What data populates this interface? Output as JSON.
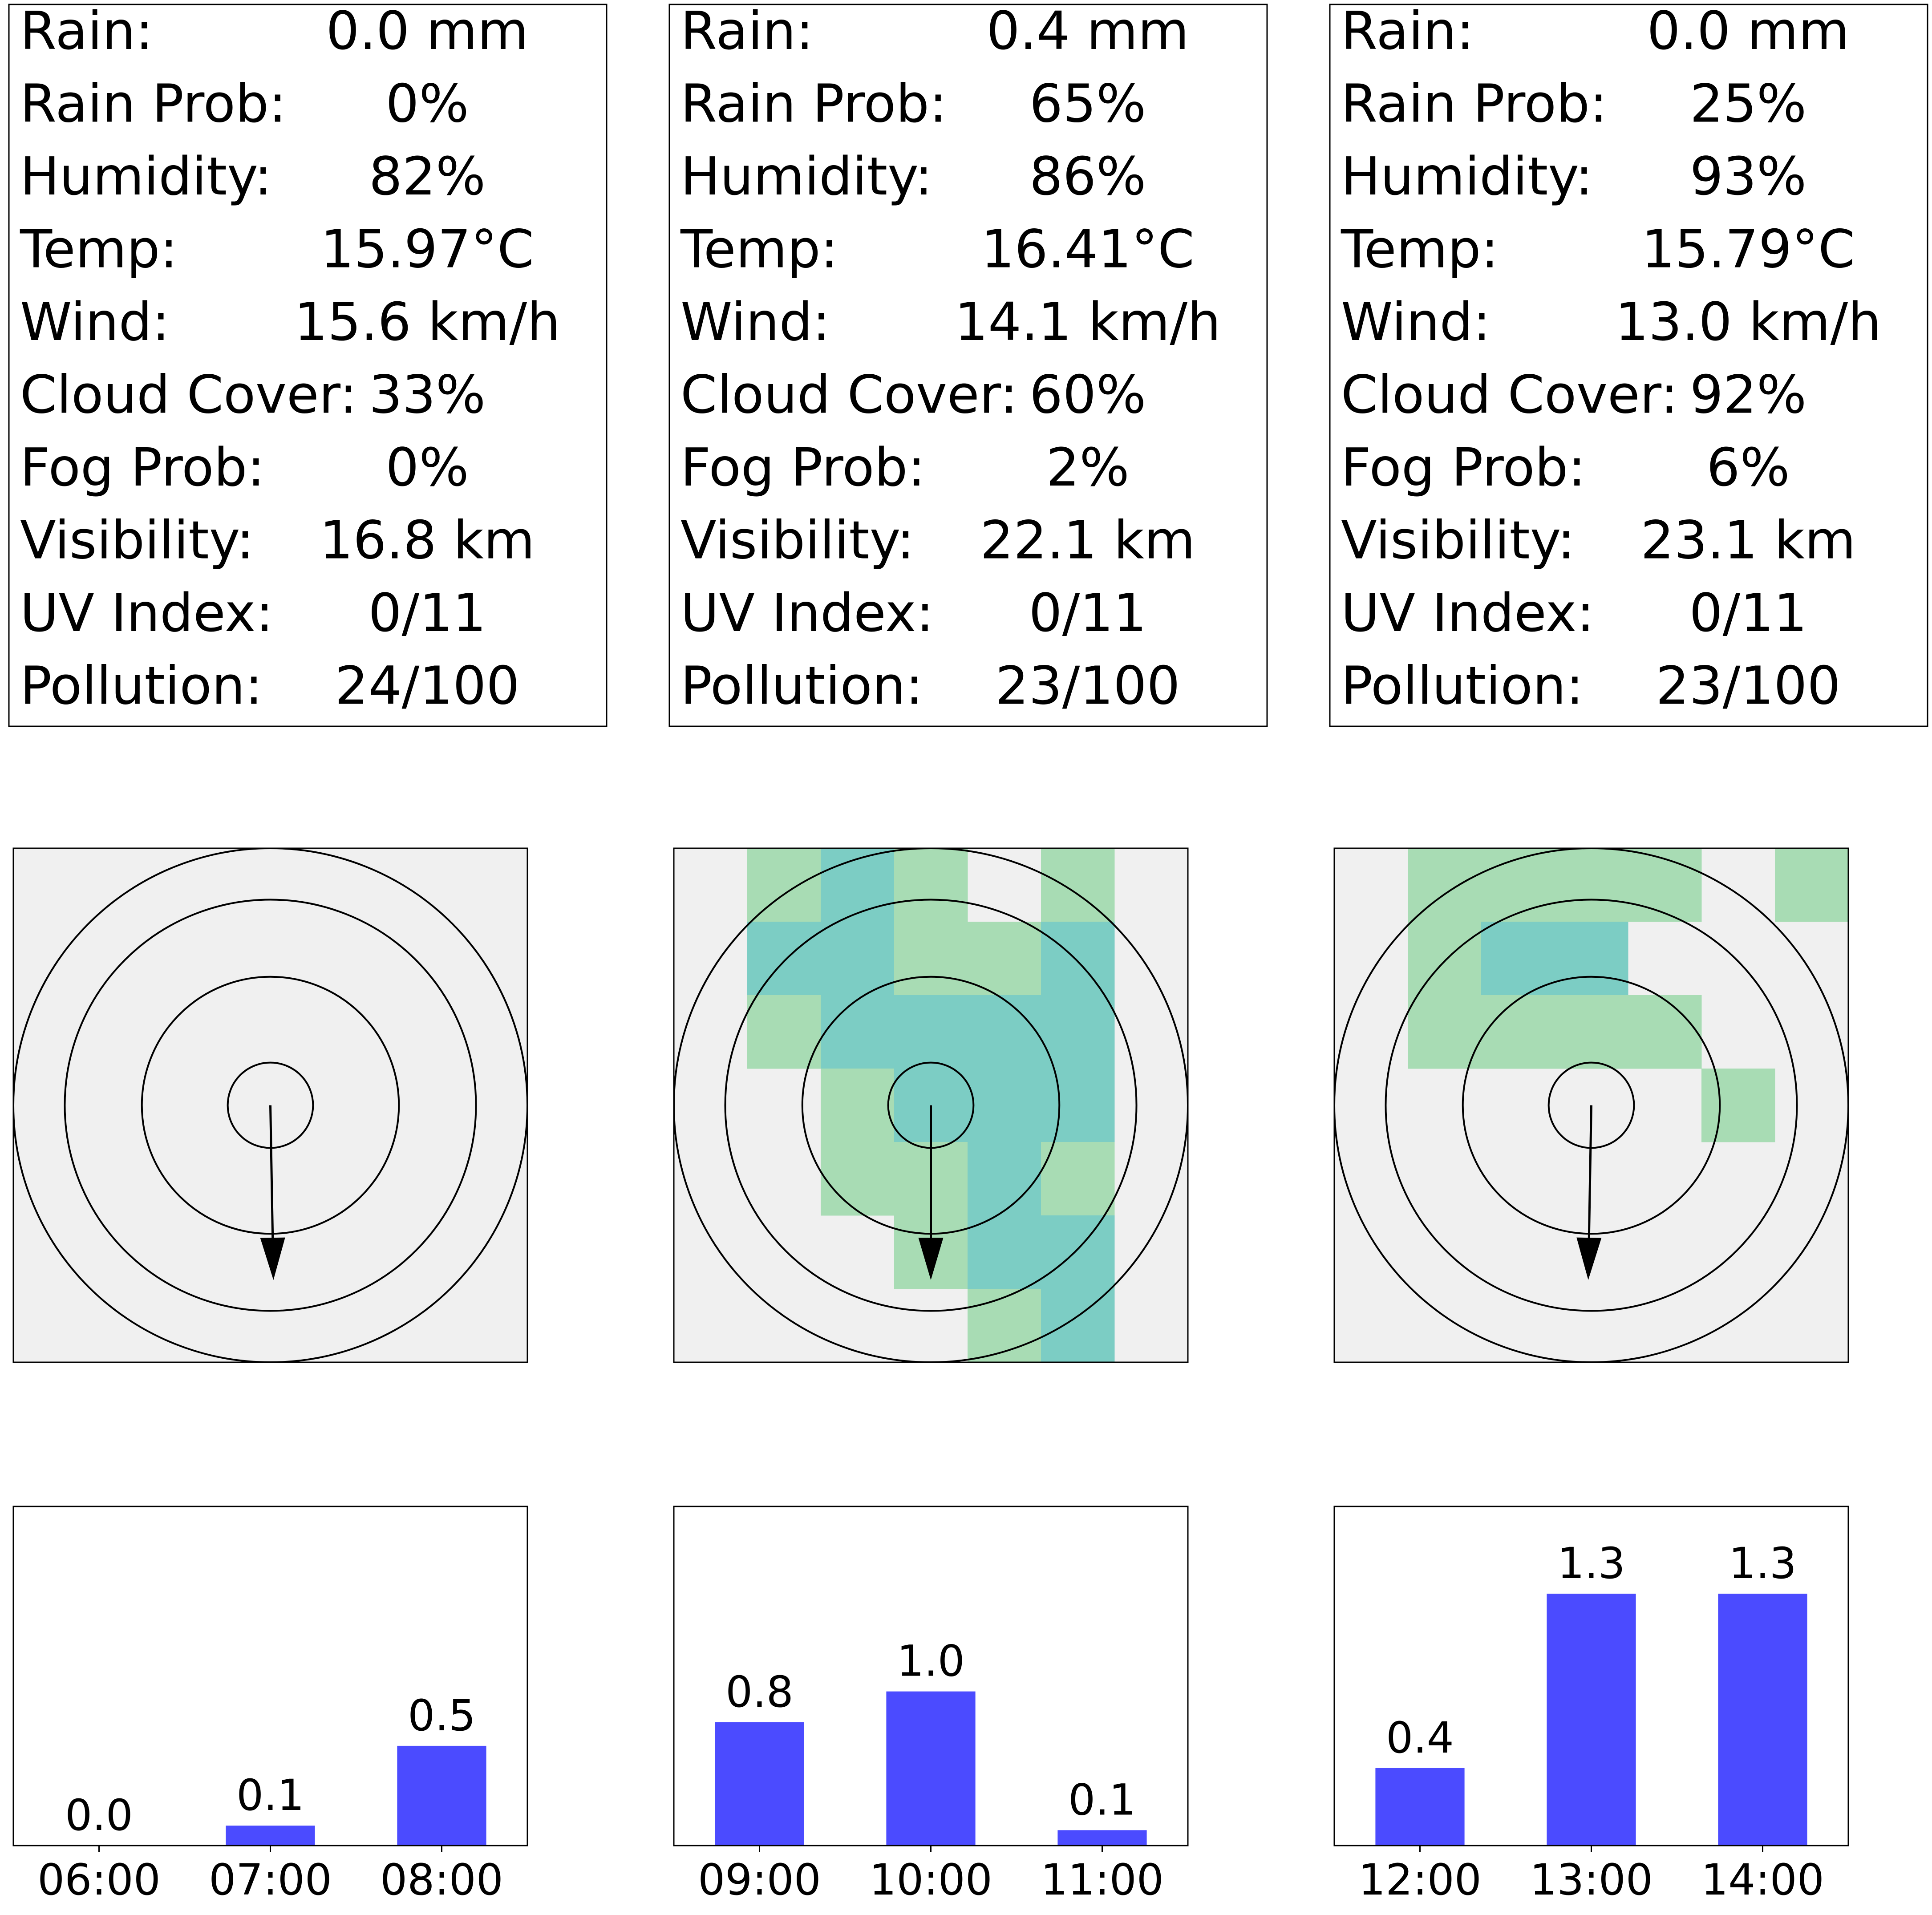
{
  "colors": {
    "map_background": "#f0f0f0",
    "light_rain": "#a8dcb4",
    "medium_rain": "#7ccdc4",
    "bar": "#4b4bff",
    "ink": "#000000"
  },
  "panels": [
    {
      "stats": [
        {
          "label": "Rain:",
          "value": "0.0 mm"
        },
        {
          "label": "Rain Prob:",
          "value": "0%"
        },
        {
          "label": "Humidity:",
          "value": "82%"
        },
        {
          "label": "Temp:",
          "value": "15.97°C"
        },
        {
          "label": "Wind:",
          "value": "15.6 km/h"
        },
        {
          "label": "Cloud Cover:",
          "value": "33%"
        },
        {
          "label": "Fog Prob:",
          "value": "0%"
        },
        {
          "label": "Visibility:",
          "value": "16.8 km"
        },
        {
          "label": "UV Index:",
          "value": "0/11"
        },
        {
          "label": "Pollution:",
          "value": "24/100"
        }
      ],
      "wind_direction_deg": 179,
      "radar_grid": [
        [
          0,
          0,
          0,
          0,
          0,
          0,
          0
        ],
        [
          0,
          0,
          0,
          0,
          0,
          0,
          0
        ],
        [
          0,
          0,
          0,
          0,
          0,
          0,
          0
        ],
        [
          0,
          0,
          0,
          0,
          0,
          0,
          0
        ],
        [
          0,
          0,
          0,
          0,
          0,
          0,
          0
        ],
        [
          0,
          0,
          0,
          0,
          0,
          0,
          0
        ],
        [
          0,
          0,
          0,
          0,
          0,
          0,
          0
        ]
      ]
    },
    {
      "stats": [
        {
          "label": "Rain:",
          "value": "0.4 mm"
        },
        {
          "label": "Rain Prob:",
          "value": "65%"
        },
        {
          "label": "Humidity:",
          "value": "86%"
        },
        {
          "label": "Temp:",
          "value": "16.41°C"
        },
        {
          "label": "Wind:",
          "value": "14.1 km/h"
        },
        {
          "label": "Cloud Cover:",
          "value": "60%"
        },
        {
          "label": "Fog Prob:",
          "value": "2%"
        },
        {
          "label": "Visibility:",
          "value": "22.1 km"
        },
        {
          "label": "UV Index:",
          "value": "0/11"
        },
        {
          "label": "Pollution:",
          "value": "23/100"
        }
      ],
      "wind_direction_deg": 180,
      "radar_grid": [
        [
          0,
          1,
          2,
          1,
          0,
          1,
          0
        ],
        [
          0,
          2,
          2,
          1,
          1,
          2,
          0
        ],
        [
          0,
          1,
          2,
          2,
          2,
          2,
          0
        ],
        [
          0,
          0,
          1,
          2,
          2,
          2,
          0
        ],
        [
          0,
          0,
          1,
          1,
          2,
          1,
          0
        ],
        [
          0,
          0,
          0,
          1,
          2,
          2,
          0
        ],
        [
          0,
          0,
          0,
          0,
          1,
          2,
          0
        ]
      ]
    },
    {
      "stats": [
        {
          "label": "Rain:",
          "value": "0.0 mm"
        },
        {
          "label": "Rain Prob:",
          "value": "25%"
        },
        {
          "label": "Humidity:",
          "value": "93%"
        },
        {
          "label": "Temp:",
          "value": "15.79°C"
        },
        {
          "label": "Wind:",
          "value": "13.0 km/h"
        },
        {
          "label": "Cloud Cover:",
          "value": "92%"
        },
        {
          "label": "Fog Prob:",
          "value": "6%"
        },
        {
          "label": "Visibility:",
          "value": "23.1 km"
        },
        {
          "label": "UV Index:",
          "value": "0/11"
        },
        {
          "label": "Pollution:",
          "value": "23/100"
        }
      ],
      "wind_direction_deg": 181,
      "radar_grid": [
        [
          0,
          1,
          1,
          1,
          1,
          0,
          1
        ],
        [
          0,
          1,
          2,
          2,
          0,
          0,
          0
        ],
        [
          0,
          1,
          1,
          1,
          1,
          0,
          0
        ],
        [
          0,
          0,
          0,
          0,
          0,
          1,
          0
        ],
        [
          0,
          0,
          0,
          0,
          0,
          0,
          0
        ],
        [
          0,
          0,
          0,
          0,
          0,
          0,
          0
        ],
        [
          0,
          0,
          0,
          0,
          0,
          0,
          0
        ]
      ]
    }
  ],
  "chart_data": [
    {
      "type": "bar",
      "categories": [
        "06:00",
        "07:00",
        "08:00"
      ],
      "values": [
        0.0,
        0.1,
        0.5
      ],
      "labels": [
        "0.0",
        "0.1",
        "0.5"
      ],
      "ylim": [
        0,
        1.7
      ]
    },
    {
      "type": "bar",
      "categories": [
        "09:00",
        "10:00",
        "11:00"
      ],
      "values": [
        0.8,
        1.0,
        0.1
      ],
      "labels": [
        "0.8",
        "1.0",
        "0.1"
      ],
      "ylim": [
        0,
        2.2
      ]
    },
    {
      "type": "bar",
      "categories": [
        "12:00",
        "13:00",
        "14:00"
      ],
      "values": [
        0.4,
        1.3,
        1.3
      ],
      "labels": [
        "0.4",
        "1.3",
        "1.3"
      ],
      "ylim": [
        0,
        1.75
      ]
    }
  ]
}
